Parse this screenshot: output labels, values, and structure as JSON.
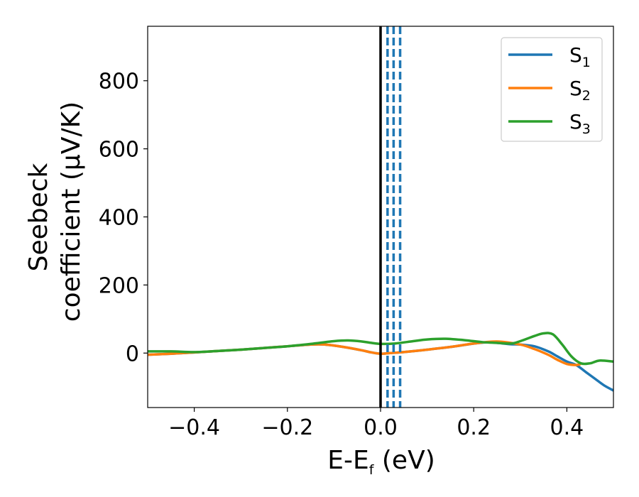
{
  "chart_data": {
    "type": "line",
    "title": "",
    "xlabel": "E-E",
    "xlabel_sub": "f",
    "xlabel_unit": " (eV)",
    "ylabel_line1": "Seebeck",
    "ylabel_line2": "coefficient  (μV/K)",
    "xlim": [
      -0.5,
      0.5
    ],
    "ylim": [
      -160,
      960
    ],
    "xticks": [
      -0.4,
      -0.2,
      0.0,
      0.2,
      0.4
    ],
    "xtick_labels": [
      "−0.4",
      "−0.2",
      "0.0",
      "0.2",
      "0.4"
    ],
    "yticks": [
      0,
      200,
      400,
      600,
      800
    ],
    "ytick_labels": [
      "0",
      "200",
      "400",
      "600",
      "800"
    ],
    "legend_position": "top-right",
    "fermi_line_x": 0.0,
    "dashed_lines_x": [
      0.015,
      0.028,
      0.042
    ],
    "series": [
      {
        "name": "S",
        "sub": "1",
        "color": "#1f77b4",
        "x": [
          -0.5,
          -0.45,
          -0.4,
          -0.35,
          -0.3,
          -0.25,
          -0.2,
          -0.15,
          -0.12,
          -0.08,
          -0.04,
          -0.02,
          0.0,
          0.02,
          0.05,
          0.1,
          0.15,
          0.2,
          0.23,
          0.25,
          0.28,
          0.3,
          0.33,
          0.36,
          0.38,
          0.4,
          0.42,
          0.44,
          0.46,
          0.48,
          0.5
        ],
        "y": [
          -5,
          -2,
          2,
          6,
          10,
          15,
          20,
          25,
          25,
          18,
          8,
          2,
          -2,
          0,
          3,
          10,
          18,
          28,
          32,
          30,
          26,
          25,
          20,
          5,
          -10,
          -25,
          -35,
          -55,
          -75,
          -95,
          -110
        ]
      },
      {
        "name": "S",
        "sub": "2",
        "color": "#ff7f0e",
        "x": [
          -0.5,
          -0.45,
          -0.4,
          -0.35,
          -0.3,
          -0.25,
          -0.2,
          -0.15,
          -0.12,
          -0.08,
          -0.04,
          -0.02,
          0.0,
          0.02,
          0.05,
          0.1,
          0.15,
          0.2,
          0.25,
          0.3,
          0.33,
          0.36,
          0.38,
          0.4,
          0.42,
          0.43
        ],
        "y": [
          -5,
          -2,
          2,
          6,
          10,
          15,
          20,
          25,
          25,
          18,
          8,
          2,
          -2,
          0,
          3,
          10,
          18,
          28,
          34,
          25,
          12,
          -5,
          -20,
          -32,
          -35,
          -32
        ]
      },
      {
        "name": "S",
        "sub": "3",
        "color": "#2ca02c",
        "x": [
          -0.5,
          -0.45,
          -0.4,
          -0.35,
          -0.3,
          -0.25,
          -0.2,
          -0.15,
          -0.1,
          -0.07,
          -0.04,
          -0.02,
          0.0,
          0.03,
          0.07,
          0.1,
          0.14,
          0.18,
          0.22,
          0.25,
          0.28,
          0.3,
          0.33,
          0.35,
          0.37,
          0.39,
          0.41,
          0.43,
          0.45,
          0.47,
          0.5
        ],
        "y": [
          5,
          5,
          3,
          6,
          10,
          15,
          20,
          27,
          35,
          37,
          34,
          30,
          27,
          28,
          35,
          40,
          42,
          38,
          32,
          30,
          28,
          35,
          50,
          58,
          55,
          25,
          -10,
          -30,
          -30,
          -22,
          -25
        ]
      }
    ]
  }
}
